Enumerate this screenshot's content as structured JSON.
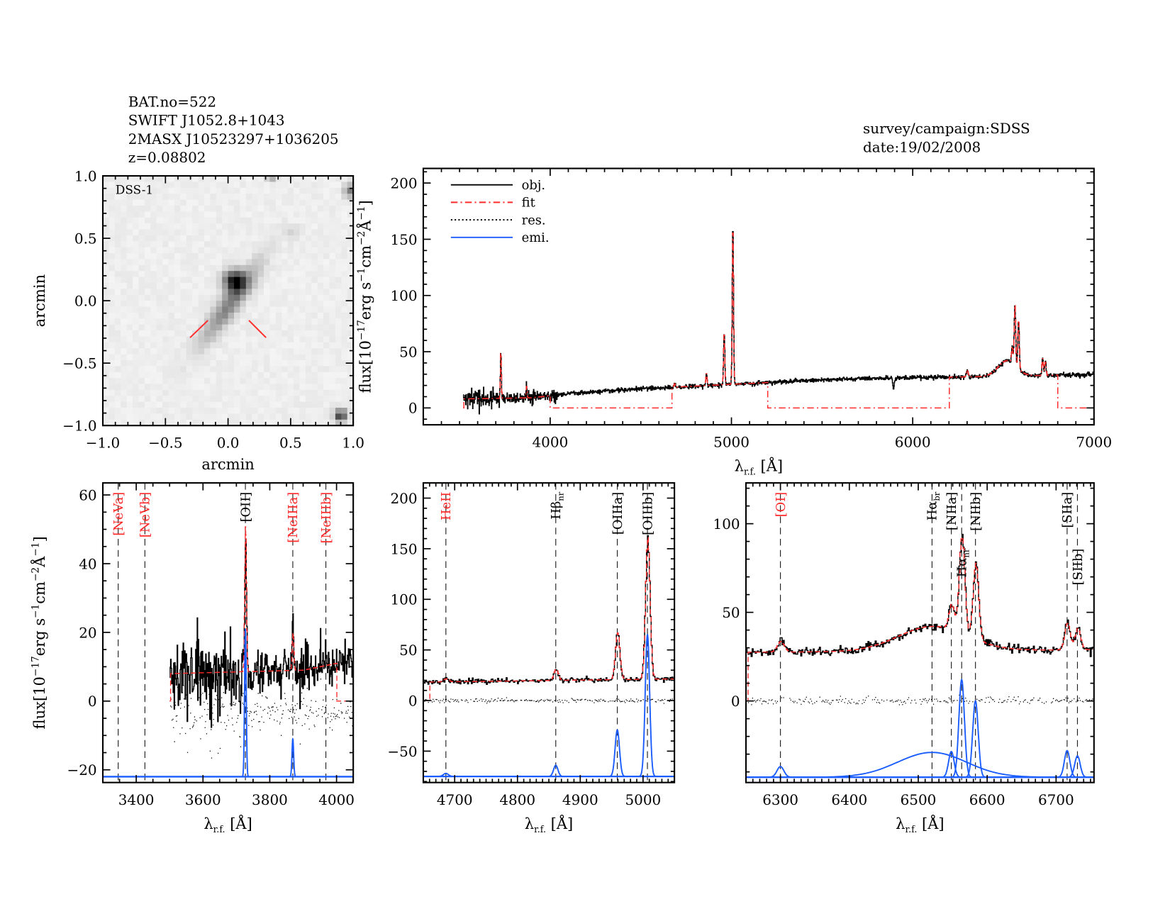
{
  "header": {
    "lines": [
      "BAT.no=522",
      "SWIFT J1052.8+1043",
      "2MASX J10523297+1036205",
      "z=0.08802"
    ],
    "survey": "survey/campaign:SDSS",
    "date": "date:19/02/2008"
  },
  "colors": {
    "obj": "#000000",
    "fit": "#ff2a2a",
    "res": "#000000",
    "emi": "#1a5cff",
    "marker_red": "#ff2a2a",
    "marker_black": "#000000"
  },
  "chart_data": [
    {
      "type": "image",
      "label": "DSS-1",
      "xlabel": "arcmin",
      "ylabel": "arcmin",
      "xlim": [
        -1,
        1
      ],
      "ylim": [
        -1,
        1
      ],
      "xticks": [
        -1,
        -0.5,
        0,
        0.5,
        1
      ],
      "xtick_labels": [
        "−1.0",
        "−0.5",
        "0.0",
        "0.5",
        "1.0"
      ],
      "yticks": [
        -1,
        -0.5,
        0,
        0.5,
        1
      ],
      "ytick_labels": [
        "−1.0",
        "−0.5",
        "0.0",
        "0.5",
        "1.0"
      ],
      "colormap": "inverted grayscale"
    },
    {
      "type": "line",
      "xlim": [
        3300,
        7000
      ],
      "ylim": [
        -15,
        213
      ],
      "xticks": [
        4000,
        5000,
        6000,
        7000
      ],
      "xtick_labels": [
        "4000",
        "5000",
        "6000",
        "7000"
      ],
      "yticks": [
        0,
        50,
        100,
        150,
        200
      ],
      "ytick_labels": [
        "0",
        "50",
        "100",
        "150",
        "200"
      ],
      "xlabel": {
        "main": "λ",
        "sub": "r.f.",
        "unit": " [Å]"
      },
      "ylabel_parts": [
        [
          "flux[10",
          ""
        ],
        [
          "−17",
          "sup"
        ],
        [
          "erg s",
          ""
        ],
        [
          "−1",
          "sup"
        ],
        [
          "cm",
          ""
        ],
        [
          "−2",
          "sup"
        ],
        [
          "Å",
          ""
        ],
        [
          "−1",
          "sup"
        ],
        [
          "]",
          ""
        ]
      ],
      "legend_position": "top-left",
      "legend": [
        {
          "label": "obj.",
          "style": "solid",
          "color": "#000000"
        },
        {
          "label": "fit",
          "style": "dash-dot",
          "color": "#ff2a2a"
        },
        {
          "label": "res.",
          "style": "dotted",
          "color": "#000000"
        },
        {
          "label": "emi.",
          "style": "solid",
          "color": "#1a5cff"
        }
      ],
      "spectrum_range": [
        3520,
        7000
      ],
      "continuum": [
        [
          3500,
          8
        ],
        [
          3900,
          9
        ],
        [
          4050,
          12
        ],
        [
          4500,
          17
        ],
        [
          5000,
          21
        ],
        [
          5500,
          25
        ],
        [
          6000,
          27
        ],
        [
          6500,
          28
        ],
        [
          7000,
          30
        ]
      ],
      "emission_lines": [
        {
          "name": "[OII]",
          "center": 3727,
          "amp": 43,
          "sigma": 2.5
        },
        {
          "name": "[NeIII]",
          "center": 3869,
          "amp": 11,
          "sigma": 2.5
        },
        {
          "name": "HeII",
          "center": 4686,
          "amp": 3,
          "sigma": 4
        },
        {
          "name": "Hβ_nr",
          "center": 4861,
          "amp": 11,
          "sigma": 3.5
        },
        {
          "name": "[OIIIa]",
          "center": 4959,
          "amp": 46,
          "sigma": 3.5
        },
        {
          "name": "[OIIIb]",
          "center": 5007,
          "amp": 140,
          "sigma": 3.5
        },
        {
          "name": "[OI]",
          "center": 6300,
          "amp": 6,
          "sigma": 5
        },
        {
          "name": "Hα_br",
          "center": 6520,
          "amp": 14,
          "sigma": 50
        },
        {
          "name": "[NIIa]",
          "center": 6548,
          "amp": 14.5,
          "sigma": 4
        },
        {
          "name": "Hα_nr",
          "center": 6563,
          "amp": 55,
          "sigma": 4
        },
        {
          "name": "[NIIb]",
          "center": 6583,
          "amp": 43,
          "sigma": 4
        },
        {
          "name": "[SIIa]",
          "center": 6716,
          "amp": 15,
          "sigma": 4
        },
        {
          "name": "[SIIb]",
          "center": 6731,
          "amp": 12,
          "sigma": 4
        }
      ],
      "absorption_lines": [
        {
          "name": "NaD",
          "center": 5893,
          "amp": -10,
          "sigma": 4
        }
      ],
      "fit_masked_ranges": [
        [
          4000,
          4670
        ],
        [
          5200,
          6200
        ],
        [
          6800,
          7000
        ]
      ]
    },
    {
      "type": "line",
      "xlim": [
        3300,
        4050
      ],
      "ylim": [
        -23.7,
        63.5
      ],
      "xticks": [
        3400,
        3600,
        3800,
        4000
      ],
      "xtick_labels": [
        "3400",
        "3600",
        "3800",
        "4000"
      ],
      "yticks": [
        -20,
        0,
        20,
        40,
        60
      ],
      "ytick_labels": [
        "−20",
        "0",
        "20",
        "40",
        "60"
      ],
      "xlabel": {
        "main": "λ",
        "sub": "r.f.",
        "unit": " [Å]"
      },
      "ylabel_parts": [
        [
          "flux[10",
          ""
        ],
        [
          "−17",
          "sup"
        ],
        [
          "erg s",
          ""
        ],
        [
          "−1",
          "sup"
        ],
        [
          "cm",
          ""
        ],
        [
          "−2",
          "sup"
        ],
        [
          "Å",
          ""
        ],
        [
          "−1",
          "sup"
        ],
        [
          "]",
          ""
        ]
      ],
      "emi_offset": -22,
      "fit_zero_ranges": [
        [
          4000,
          4050
        ]
      ],
      "markers": [
        {
          "label": "[NeVa]",
          "wavelength": 3346,
          "color": "red"
        },
        {
          "label": "[NeVb]",
          "wavelength": 3426,
          "color": "red"
        },
        {
          "label": "[OII]",
          "wavelength": 3727,
          "color": "black"
        },
        {
          "label": "[NeIIIa]",
          "wavelength": 3869,
          "color": "red"
        },
        {
          "label": "[NeIIIb]",
          "wavelength": 3968,
          "color": "red"
        }
      ]
    },
    {
      "type": "line",
      "xlim": [
        4650,
        5050
      ],
      "ylim": [
        -81,
        215
      ],
      "xticks": [
        4700,
        4800,
        4900,
        5000
      ],
      "xtick_labels": [
        "4700",
        "4800",
        "4900",
        "5000"
      ],
      "yticks": [
        -50,
        0,
        50,
        100,
        150,
        200
      ],
      "ytick_labels": [
        "−50",
        "0",
        "50",
        "100",
        "150",
        "200"
      ],
      "xlabel": {
        "main": "λ",
        "sub": "r.f.",
        "unit": " [Å]"
      },
      "emi_offset": -75,
      "fit_zero_ranges": [
        [
          4650,
          4660
        ]
      ],
      "markers": [
        {
          "label": "HeII",
          "wavelength": 4686,
          "color": "red"
        },
        {
          "label": "Hβ",
          "sub": "nr",
          "wavelength": 4861,
          "color": "black"
        },
        {
          "label": "[OIIIa]",
          "wavelength": 4959,
          "color": "black"
        },
        {
          "label": "[OIIIb]",
          "wavelength": 5007,
          "color": "black"
        }
      ]
    },
    {
      "type": "line",
      "xlim": [
        6250,
        6755
      ],
      "ylim": [
        -46,
        123
      ],
      "xticks": [
        6300,
        6400,
        6500,
        6600,
        6700
      ],
      "xtick_labels": [
        "6300",
        "6400",
        "6500",
        "6600",
        "6700"
      ],
      "yticks": [
        0,
        50,
        100
      ],
      "ytick_labels": [
        "0",
        "50",
        "100"
      ],
      "xlabel": {
        "main": "λ",
        "sub": "r.f.",
        "unit": " [Å]"
      },
      "emi_offset": -43,
      "fit_zero_ranges": [],
      "markers": [
        {
          "label": "[OI]",
          "wavelength": 6300,
          "color": "red"
        },
        {
          "label": "Hα",
          "sub": "br",
          "wavelength": 6520,
          "color": "black"
        },
        {
          "label": "[NIIa]",
          "wavelength": 6548,
          "color": "black"
        },
        {
          "label": "Hα",
          "sub": "nr",
          "wavelength": 6563,
          "color": "black"
        },
        {
          "label": "[NIIb]",
          "wavelength": 6583,
          "color": "black"
        },
        {
          "label": "[SIIa]",
          "wavelength": 6716,
          "color": "black"
        },
        {
          "label": "[SIIb]",
          "wavelength": 6731,
          "color": "black"
        }
      ]
    }
  ]
}
